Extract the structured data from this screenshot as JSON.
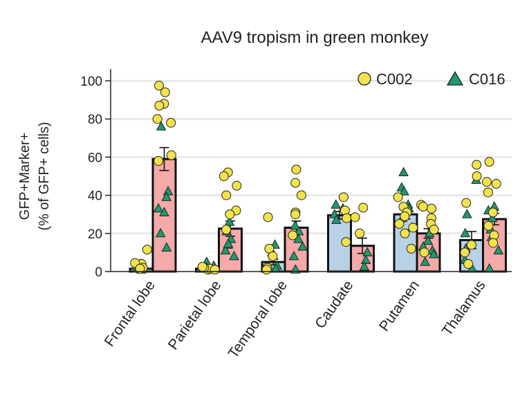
{
  "chart_data": {
    "type": "bar",
    "title": "AAV9 tropism in green monkey",
    "ylabel_line1": "GFP+Marker+",
    "ylabel_line2": "(% of GFP+ cells)",
    "xlabel": "",
    "ylim": [
      0,
      110
    ],
    "yticks": [
      0,
      20,
      40,
      60,
      80,
      100
    ],
    "grid": "horizontal",
    "legend_position": "top-right",
    "legend": [
      {
        "name": "C002",
        "marker": "circle",
        "color": "#f2e24b"
      },
      {
        "name": "C016",
        "marker": "triangle",
        "color": "#1f9a6b"
      }
    ],
    "categories": [
      "Frontal lobe",
      "Parietal lobe",
      "Temporal lobe",
      "Caudate",
      "Putamen",
      "Thalamus"
    ],
    "colors": {
      "cortex_left_bar": "#b9d1e6",
      "right_bar": "#f4aaa8",
      "subcortical_left_bar": "#b9d1e6",
      "circle_fill": "#f2e24b",
      "triangle_fill": "#1f9a6b",
      "grid": "#e6e6e6"
    },
    "groups": [
      {
        "category": "Frontal lobe",
        "bars": [
          {
            "mean": 1.5,
            "err": 0.8,
            "circles": [
              4,
              4.5,
              11.5,
              2,
              1.5
            ],
            "triangles": [
              1,
              2,
              3,
              1.5,
              4
            ]
          },
          {
            "mean": 59,
            "err": 6,
            "circles": [
              97.5,
              94,
              88,
              87,
              80,
              78,
              61,
              58
            ],
            "triangles": [
              76,
              42,
              39,
              33,
              31,
              20,
              12.5
            ]
          }
        ]
      },
      {
        "category": "Parietal lobe",
        "bars": [
          {
            "mean": 1.5,
            "err": 0.6,
            "circles": [
              1,
              1.5,
              2,
              2.5,
              1
            ],
            "triangles": [
              5,
              3,
              1.5,
              2
            ]
          },
          {
            "mean": 22.5,
            "err": 4,
            "circles": [
              52,
              50,
              45,
              40,
              32,
              30,
              22
            ],
            "triangles": [
              26,
              21,
              17,
              14,
              11,
              8,
              14.5
            ]
          }
        ]
      },
      {
        "category": "Temporal lobe",
        "bars": [
          {
            "mean": 5,
            "err": 1.5,
            "circles": [
              28.5,
              12,
              8,
              2,
              1
            ],
            "triangles": [
              14,
              10,
              3,
              1.5
            ]
          },
          {
            "mean": 23,
            "err": 3.5,
            "circles": [
              53.5,
              46.5,
              40,
              31,
              30,
              19
            ],
            "triangles": [
              24,
              21,
              17,
              13,
              8,
              1
            ]
          }
        ]
      },
      {
        "category": "Caudate",
        "bars": [
          {
            "mean": 29.5,
            "err": 2,
            "circles": [
              39,
              32,
              28,
              15.5
            ],
            "triangles": [
              35,
              33,
              30,
              27
            ]
          },
          {
            "mean": 13.5,
            "err": 4,
            "circles": [
              33.5,
              28.5,
              20
            ],
            "triangles": [
              10,
              6,
              2.5
            ]
          }
        ]
      },
      {
        "category": "Putamen",
        "bars": [
          {
            "mean": 30,
            "err": 2.5,
            "circles": [
              39,
              34,
              31,
              29,
              25,
              23,
              20,
              12
            ],
            "triangles": [
              52,
              44,
              42,
              35,
              33,
              28,
              23
            ]
          },
          {
            "mean": 20,
            "err": 2.5,
            "circles": [
              35,
              34,
              33,
              28,
              25,
              22,
              10
            ],
            "triangles": [
              20,
              16,
              13,
              11,
              9,
              5
            ]
          }
        ]
      },
      {
        "category": "Thalamus",
        "bars": [
          {
            "mean": 16.5,
            "err": 4.5,
            "circles": [
              56,
              50,
              36,
              14,
              10,
              4
            ],
            "triangles": [
              48,
              30,
              20,
              12,
              6,
              1.5
            ]
          },
          {
            "mean": 27.5,
            "err": 3,
            "circles": [
              57.5,
              47,
              46,
              41.5,
              31,
              24,
              19,
              15
            ],
            "triangles": [
              34,
              32,
              28,
              22,
              18,
              11,
              1.5
            ]
          }
        ]
      }
    ]
  }
}
